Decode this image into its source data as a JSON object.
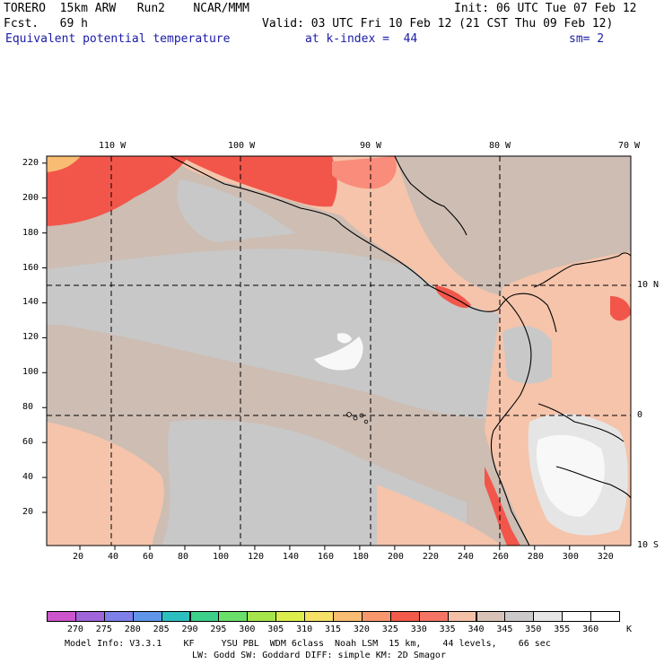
{
  "header": {
    "line1_left": "TORERO  15km ARW   Run2    NCAR/MMM",
    "line1_right": "Init: 06 UTC Tue 07 Feb 12",
    "line2_left": "Fcst.   69 h",
    "line2_right": "Valid: 03 UTC Fri 10 Feb 12 (21 CST Thu 09 Feb 12)",
    "field": "Equivalent potential temperature",
    "level": "at k-index =  44",
    "smoothing": "sm= 2"
  },
  "map": {
    "top_lon_labels": [
      "110 W",
      "100 W",
      "90 W",
      "80 W",
      "70 W"
    ],
    "right_lat_labels": [
      "10 N",
      "0",
      "10 S"
    ],
    "y_ticks": [
      "220",
      "200",
      "180",
      "160",
      "140",
      "120",
      "100",
      "80",
      "60",
      "40",
      "20"
    ],
    "x_ticks": [
      "20",
      "40",
      "60",
      "80",
      "100",
      "120",
      "140",
      "160",
      "180",
      "200",
      "220",
      "240",
      "260",
      "280",
      "300",
      "320"
    ],
    "colors": {
      "ocean_main": "#cdbdb3",
      "ocean_gray": "#c8c8c8",
      "ocean_salmon": "#f5c4ab",
      "warm": "#f98c7a",
      "hot": "#f2564a",
      "land_light": "#e5e5e5",
      "land_white": "#f8f8f8"
    }
  },
  "colorbar": {
    "values": [
      "270",
      "275",
      "280",
      "285",
      "290",
      "295",
      "300",
      "305",
      "310",
      "315",
      "320",
      "325",
      "330",
      "335",
      "340",
      "345",
      "350",
      "355",
      "360"
    ],
    "unit": "K",
    "colors": [
      "#cc55cc",
      "#a066d9",
      "#7f7fea",
      "#5f96ea",
      "#2dbfbf",
      "#3cd08a",
      "#6ae06a",
      "#a6e64c",
      "#dcee4c",
      "#f6e065",
      "#f8bd72",
      "#f8976e",
      "#f25a4a",
      "#f47566",
      "#f5c0a8",
      "#d9c2b8",
      "#cbc9c9",
      "#e6e6e6",
      "#ffffff"
    ]
  },
  "footer": {
    "line1": "Model Info: V3.3.1    KF     YSU PBL  WDM 6class  Noah LSM  15 km,    44 levels,    66 sec",
    "line2": "LW: Godd SW: Goddard DIFF: simple KM: 2D Smagor"
  }
}
